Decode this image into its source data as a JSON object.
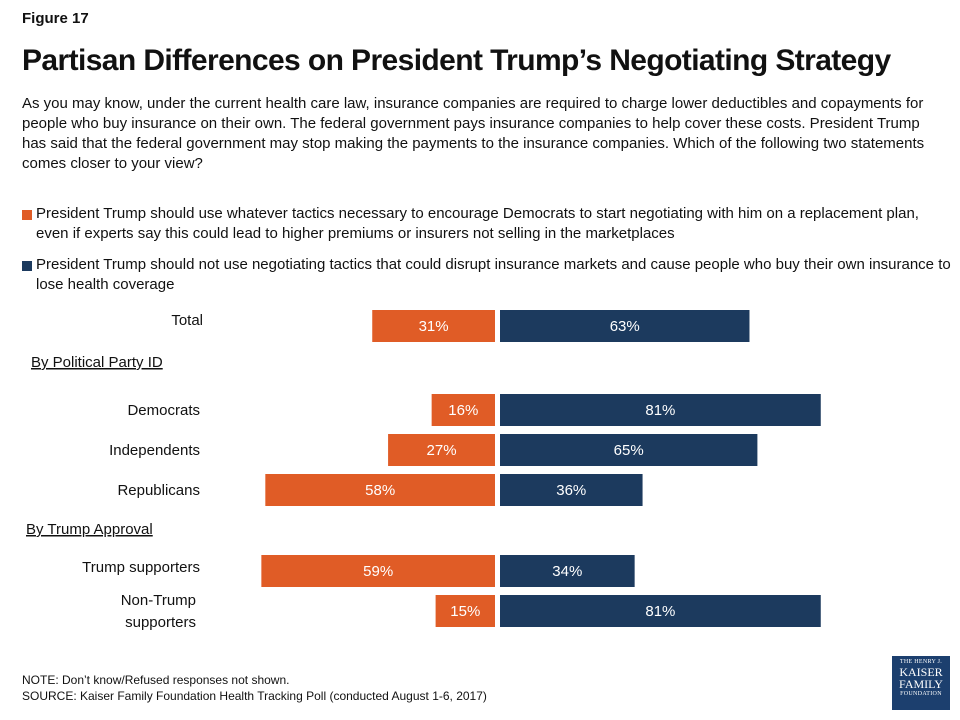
{
  "figure_label": "Figure 17",
  "title": "Partisan Differences on President Trump’s Negotiating Strategy",
  "question": "As you may know, under the current health care law, insurance companies are required to charge lower deductibles and copayments for people who buy insurance on their own. The federal government pays insurance companies to help cover these costs. President Trump has said that the federal government may stop making the payments to the insurance companies. Which of the following two statements comes closer to your view?",
  "colors": {
    "tactics": "#e05c26",
    "no_tactics": "#1c3a5e",
    "bar_text": "#ffffff"
  },
  "chart_data": {
    "type": "bar",
    "orientation": "horizontal-diverging",
    "unit": "%",
    "series": [
      {
        "name": "President Trump should use whatever tactics necessary to encourage Democrats to start negotiating with him on a replacement plan, even if experts say this could lead to higher premiums or insurers not selling in the marketplaces",
        "color": "#e05c26"
      },
      {
        "name": "President Trump should not use negotiating tactics that could disrupt insurance markets and cause people who buy their own insurance to lose health coverage",
        "color": "#1c3a5e"
      }
    ],
    "rows": [
      {
        "kind": "category",
        "label": "Total",
        "tactics": 31,
        "no_tactics": 63
      },
      {
        "kind": "header",
        "label": "By Political Party ID"
      },
      {
        "kind": "category",
        "label": "Democrats",
        "tactics": 16,
        "no_tactics": 81
      },
      {
        "kind": "category",
        "label": "Independents",
        "tactics": 27,
        "no_tactics": 65
      },
      {
        "kind": "category",
        "label": "Republicans",
        "tactics": 58,
        "no_tactics": 36
      },
      {
        "kind": "header",
        "label": "By Trump Approval"
      },
      {
        "kind": "category",
        "label": "Trump supporters",
        "tactics": 59,
        "no_tactics": 34
      },
      {
        "kind": "category",
        "label": "Non-Trump supporters",
        "label_lines": [
          "Non-Trump",
          "supporters"
        ],
        "tactics": 15,
        "no_tactics": 81
      }
    ]
  },
  "note": "NOTE: Don’t know/Refused responses not shown.",
  "source": "SOURCE: Kaiser Family Foundation Health Tracking Poll (conducted August 1-6, 2017)",
  "logo": {
    "line1": "THE HENRY J.",
    "line2": "KAISER",
    "line3": "FAMILY",
    "line4": "FOUNDATION"
  }
}
